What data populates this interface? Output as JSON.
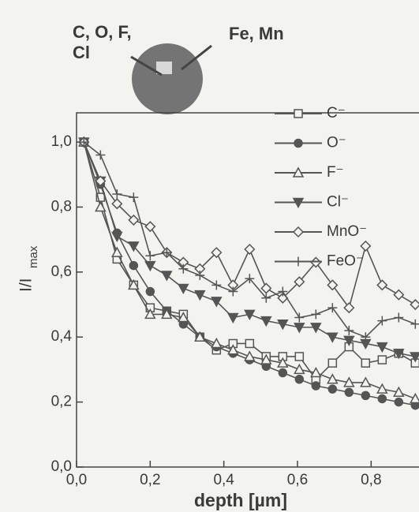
{
  "chart_data": {
    "type": "line",
    "xlabel": "depth [µm]",
    "ylabel": "I/I",
    "ylabel_sub": "max",
    "inset": {
      "left_label_lines": [
        "C, O, F,",
        "Cl"
      ],
      "right_label": "Fe, Mn"
    },
    "xlim": [
      0,
      0.93
    ],
    "ylim": [
      0,
      1.09
    ],
    "xticks": [
      {
        "value": 0,
        "label": "0,0"
      },
      {
        "value": 0.2,
        "label": "0,2"
      },
      {
        "value": 0.4,
        "label": "0,4"
      },
      {
        "value": 0.6,
        "label": "0,6"
      },
      {
        "value": 0.8,
        "label": "0,8"
      }
    ],
    "yticks": [
      {
        "value": 0,
        "label": "0,0"
      },
      {
        "value": 0.2,
        "label": "0,2"
      },
      {
        "value": 0.4,
        "label": "0,4"
      },
      {
        "value": 0.6,
        "label": "0,6"
      },
      {
        "value": 0.8,
        "label": "0,8"
      },
      {
        "value": 1.0,
        "label": "1,0"
      }
    ],
    "x": [
      0.02,
      0.065,
      0.11,
      0.155,
      0.2,
      0.245,
      0.29,
      0.335,
      0.38,
      0.425,
      0.47,
      0.515,
      0.56,
      0.605,
      0.65,
      0.695,
      0.74,
      0.785,
      0.83,
      0.875,
      0.92
    ],
    "series": [
      {
        "name": "C⁻",
        "color": "#555555",
        "marker": "square-open",
        "values": [
          1.0,
          0.83,
          0.64,
          0.56,
          0.49,
          0.48,
          0.47,
          0.4,
          0.36,
          0.38,
          0.38,
          0.34,
          0.34,
          0.34,
          0.27,
          0.32,
          0.37,
          0.32,
          0.33,
          0.35,
          0.32
        ]
      },
      {
        "name": "O⁻",
        "color": "#555555",
        "marker": "circle-filled",
        "values": [
          1.0,
          0.87,
          0.72,
          0.62,
          0.54,
          0.48,
          0.44,
          0.4,
          0.37,
          0.35,
          0.33,
          0.31,
          0.29,
          0.27,
          0.25,
          0.24,
          0.23,
          0.22,
          0.21,
          0.2,
          0.19
        ]
      },
      {
        "name": "F⁻",
        "color": "#555555",
        "marker": "triangle-open",
        "values": [
          1.0,
          0.8,
          0.66,
          0.56,
          0.47,
          0.47,
          0.46,
          0.4,
          0.38,
          0.36,
          0.34,
          0.33,
          0.32,
          0.3,
          0.29,
          0.27,
          0.26,
          0.26,
          0.24,
          0.23,
          0.21
        ]
      },
      {
        "name": "Cl⁻",
        "color": "#555555",
        "marker": "triangle-down-filled",
        "values": [
          1.0,
          0.88,
          0.71,
          0.68,
          0.62,
          0.59,
          0.55,
          0.53,
          0.51,
          0.46,
          0.47,
          0.45,
          0.44,
          0.43,
          0.43,
          0.4,
          0.39,
          0.38,
          0.37,
          0.35,
          0.34
        ]
      },
      {
        "name": "MnO⁻",
        "color": "#555555",
        "marker": "diamond-open",
        "values": [
          1.0,
          0.88,
          0.81,
          0.76,
          0.74,
          0.66,
          0.63,
          0.61,
          0.66,
          0.56,
          0.67,
          0.55,
          0.52,
          0.57,
          0.63,
          0.56,
          0.49,
          0.68,
          0.56,
          0.53,
          0.5
        ]
      },
      {
        "name": "FeO⁻",
        "color": "#555555",
        "marker": "plus",
        "values": [
          1.0,
          0.96,
          0.84,
          0.83,
          0.65,
          0.66,
          0.61,
          0.59,
          0.56,
          0.54,
          0.58,
          0.52,
          0.54,
          0.46,
          0.47,
          0.49,
          0.42,
          0.4,
          0.45,
          0.46,
          0.44
        ]
      }
    ]
  }
}
